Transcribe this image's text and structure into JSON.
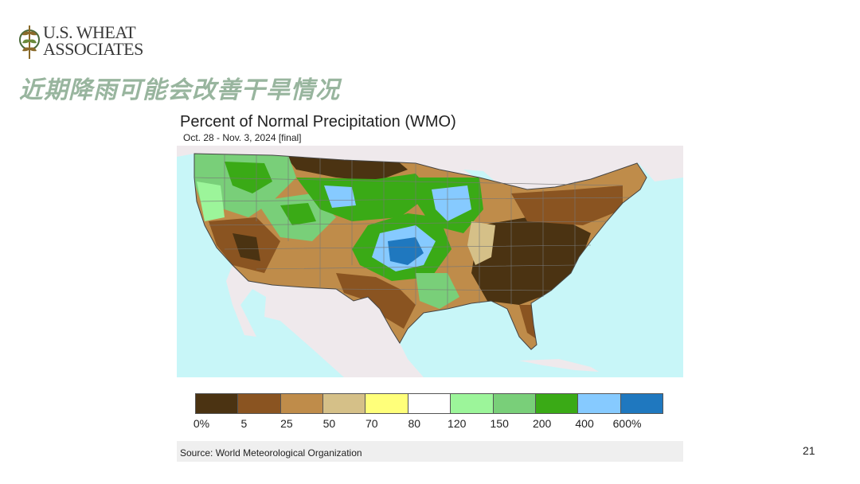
{
  "logo": {
    "line1": "U.S. WHEAT",
    "line2": "ASSOCIATES"
  },
  "slide_title": "近期降雨可能会改善干旱情况",
  "map": {
    "title": "Percent of Normal Precipitation (WMO)",
    "subtitle": "Oct. 28 - Nov. 3, 2024 [final]",
    "colors": {
      "ocean": "#c8f6f8",
      "foreign_land": "#efe9ec",
      "border": "#444444"
    }
  },
  "legend": {
    "colors": [
      "#4b3312",
      "#8a5421",
      "#bf8c4a",
      "#d5c088",
      "#ffff7a",
      "#ffffff",
      "#9cf59a",
      "#79cf79",
      "#3aaa16",
      "#86caff",
      "#1f78bf"
    ],
    "labels": [
      "0%",
      "5",
      "25",
      "50",
      "70",
      "80",
      "120",
      "150",
      "200",
      "400",
      "600%"
    ]
  },
  "source": "Source: World Meteorological Organization",
  "page_number": "21"
}
